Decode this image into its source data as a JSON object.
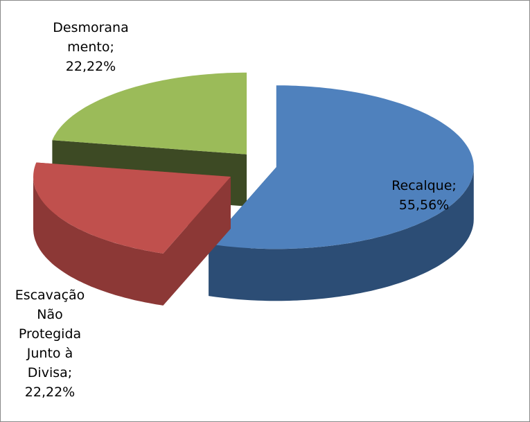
{
  "chart_data": {
    "type": "pie",
    "labels": [
      [
        "Recalque;"
      ],
      [
        "Escavação",
        "Não",
        "Protegida",
        "Junto à",
        "Divisa;"
      ],
      [
        "Desmorana",
        "mento;"
      ]
    ],
    "values": [
      55.56,
      22.22,
      22.22
    ],
    "value_labels": [
      "55,56%",
      "22,22%",
      "22,22%"
    ],
    "colors": [
      "#4f81bd",
      "#c0504d",
      "#9bbb59"
    ],
    "side_colors": [
      "#2c4d75",
      "#8c3836",
      "#3d4a24"
    ],
    "style": "3d-exploded"
  }
}
